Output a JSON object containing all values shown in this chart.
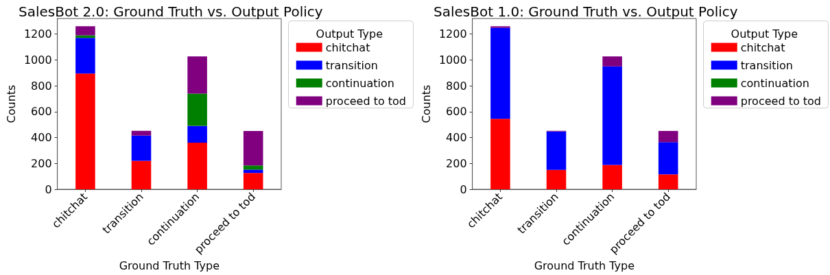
{
  "chart_data": [
    {
      "type": "bar",
      "title": "SalesBot 2.0: Ground Truth vs. Output Policy",
      "xlabel": "Ground Truth Type",
      "ylabel": "Counts",
      "legend_title": "Output Type",
      "categories": [
        "chitchat",
        "transition",
        "continuation",
        "proceed to tod"
      ],
      "stacked": true,
      "legend": "right",
      "grid": false,
      "ylim": [
        0,
        1320
      ],
      "yticks": [
        0,
        200,
        400,
        600,
        800,
        1000,
        1200
      ],
      "series": [
        {
          "name": "chitchat",
          "color": "#ff0000",
          "values": [
            895,
            220,
            360,
            126
          ]
        },
        {
          "name": "transition",
          "color": "#0000ff",
          "values": [
            275,
            195,
            130,
            26
          ]
        },
        {
          "name": "continuation",
          "color": "#008000",
          "values": [
            20,
            0,
            250,
            32
          ]
        },
        {
          "name": "proceed to tod",
          "color": "#800080",
          "values": [
            70,
            37,
            287,
            267
          ]
        }
      ]
    },
    {
      "type": "bar",
      "title": "SalesBot 1.0: Ground Truth vs. Output Policy",
      "xlabel": "Ground Truth Type",
      "ylabel": "Counts",
      "legend_title": "Output Type",
      "categories": [
        "chitchat",
        "transition",
        "continuation",
        "proceed to tod"
      ],
      "stacked": true,
      "legend": "right",
      "grid": false,
      "ylim": [
        0,
        1320
      ],
      "yticks": [
        0,
        200,
        400,
        600,
        800,
        1000,
        1200
      ],
      "series": [
        {
          "name": "chitchat",
          "color": "#ff0000",
          "values": [
            545,
            150,
            188,
            115
          ]
        },
        {
          "name": "transition",
          "color": "#0000ff",
          "values": [
            703,
            297,
            762,
            249
          ]
        },
        {
          "name": "continuation",
          "color": "#008000",
          "values": [
            0,
            0,
            0,
            0
          ]
        },
        {
          "name": "proceed to tod",
          "color": "#800080",
          "values": [
            12,
            5,
            77,
            87
          ]
        }
      ]
    }
  ]
}
